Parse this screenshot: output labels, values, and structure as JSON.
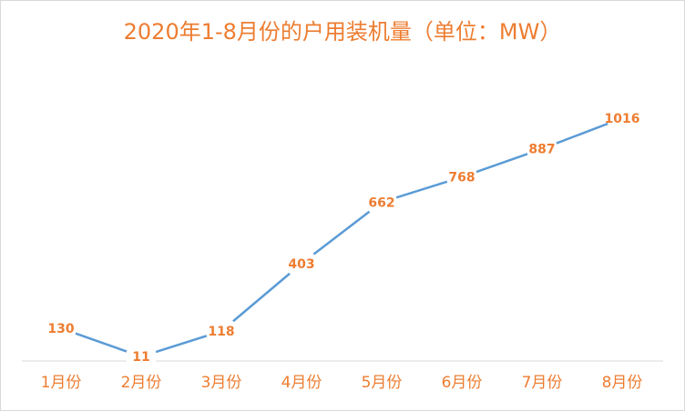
{
  "chart_data": {
    "type": "line",
    "title": "2020年1-8月份的户用装机量（单位：MW）",
    "categories": [
      "1月份",
      "2月份",
      "3月份",
      "4月份",
      "5月份",
      "6月份",
      "7月份",
      "8月份"
    ],
    "values": [
      130,
      11,
      118,
      403,
      662,
      768,
      887,
      1016
    ],
    "color": "#5b9bd5"
  }
}
